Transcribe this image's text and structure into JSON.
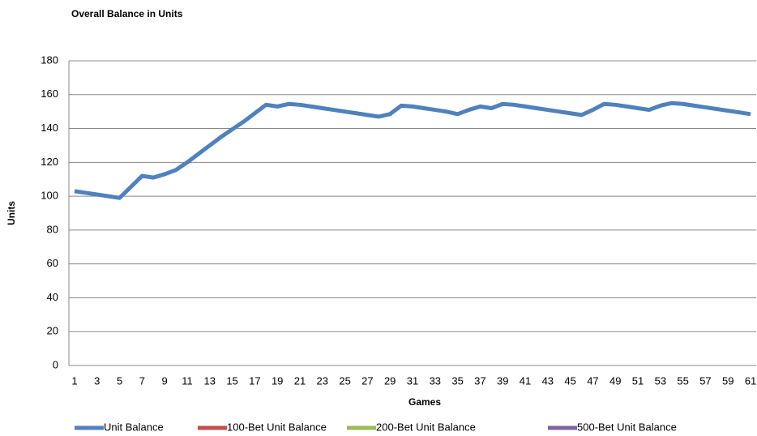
{
  "chart_data": {
    "type": "line",
    "title": "Overall Balance in Units",
    "x_label": "Games",
    "y_label": "Units",
    "categories": [
      "1",
      null,
      "3",
      null,
      "5",
      null,
      "7",
      null,
      "9",
      null,
      "11",
      null,
      "13",
      null,
      "15",
      null,
      "17",
      null,
      "19",
      null,
      "21",
      null,
      "23",
      null,
      "25",
      null,
      "27",
      null,
      "29",
      null,
      "31",
      null,
      "33",
      null,
      "35",
      null,
      "37",
      null,
      "39",
      null,
      "41",
      null,
      "43",
      null,
      "45",
      null,
      "47",
      null,
      "49",
      null,
      "51",
      null,
      "53",
      null,
      "55",
      null,
      "57",
      null,
      "59",
      null,
      "61"
    ],
    "series": [
      {
        "name": "Unit Balance",
        "color": "#4f81bd",
        "values": [
          103,
          102,
          101,
          100,
          99,
          105.5,
          112,
          111,
          113,
          115.5,
          120,
          125,
          130,
          135,
          139.5,
          144,
          149,
          154,
          153,
          154.5,
          154,
          153,
          152,
          151,
          150,
          149,
          148,
          147,
          148.5,
          153.5,
          153,
          152,
          151,
          150,
          148.5,
          151,
          153,
          152,
          154.5,
          154,
          153,
          152,
          151,
          150,
          149,
          148,
          151,
          154.5,
          154,
          153,
          152,
          151,
          153.5,
          155,
          154.5,
          153.5,
          152.5,
          151.5,
          150.5,
          149.5,
          148.5
        ]
      },
      {
        "name": "100-Bet Unit Balance",
        "color": "#c0504d",
        "values": [
          null,
          null,
          null,
          null,
          null,
          null,
          null,
          null,
          null,
          null,
          null,
          null,
          null,
          null,
          null,
          null,
          null,
          null,
          null,
          null,
          null,
          null,
          null,
          null,
          null,
          null,
          null,
          null,
          null,
          null,
          null,
          null,
          null,
          null,
          null,
          null,
          null,
          null,
          null,
          null,
          null,
          null,
          null,
          null,
          null,
          null,
          null,
          null,
          null,
          null,
          null,
          null,
          null,
          null,
          null,
          null,
          null,
          null,
          null,
          null,
          null
        ]
      },
      {
        "name": "200-Bet Unit Balance",
        "color": "#9bbb59",
        "values": [
          null,
          null,
          null,
          null,
          null,
          null,
          null,
          null,
          null,
          null,
          null,
          null,
          null,
          null,
          null,
          null,
          null,
          null,
          null,
          null,
          null,
          null,
          null,
          null,
          null,
          null,
          null,
          null,
          null,
          null,
          null,
          null,
          null,
          null,
          null,
          null,
          null,
          null,
          null,
          null,
          null,
          null,
          null,
          null,
          null,
          null,
          null,
          null,
          null,
          null,
          null,
          null,
          null,
          null,
          null,
          null,
          null,
          null,
          null,
          null,
          null
        ]
      },
      {
        "name": "500-Bet Unit Balance",
        "color": "#8064a2",
        "values": [
          null,
          null,
          null,
          null,
          null,
          null,
          null,
          null,
          null,
          null,
          null,
          null,
          null,
          null,
          null,
          null,
          null,
          null,
          null,
          null,
          null,
          null,
          null,
          null,
          null,
          null,
          null,
          null,
          null,
          null,
          null,
          null,
          null,
          null,
          null,
          null,
          null,
          null,
          null,
          null,
          null,
          null,
          null,
          null,
          null,
          null,
          null,
          null,
          null,
          null,
          null,
          null,
          null,
          null,
          null,
          null,
          null,
          null,
          null,
          null,
          null
        ]
      }
    ],
    "ylim": [
      0,
      180
    ],
    "yticks": [
      0,
      20,
      40,
      60,
      80,
      100,
      120,
      140,
      160,
      180
    ],
    "grid": true,
    "legend": "bottom"
  }
}
